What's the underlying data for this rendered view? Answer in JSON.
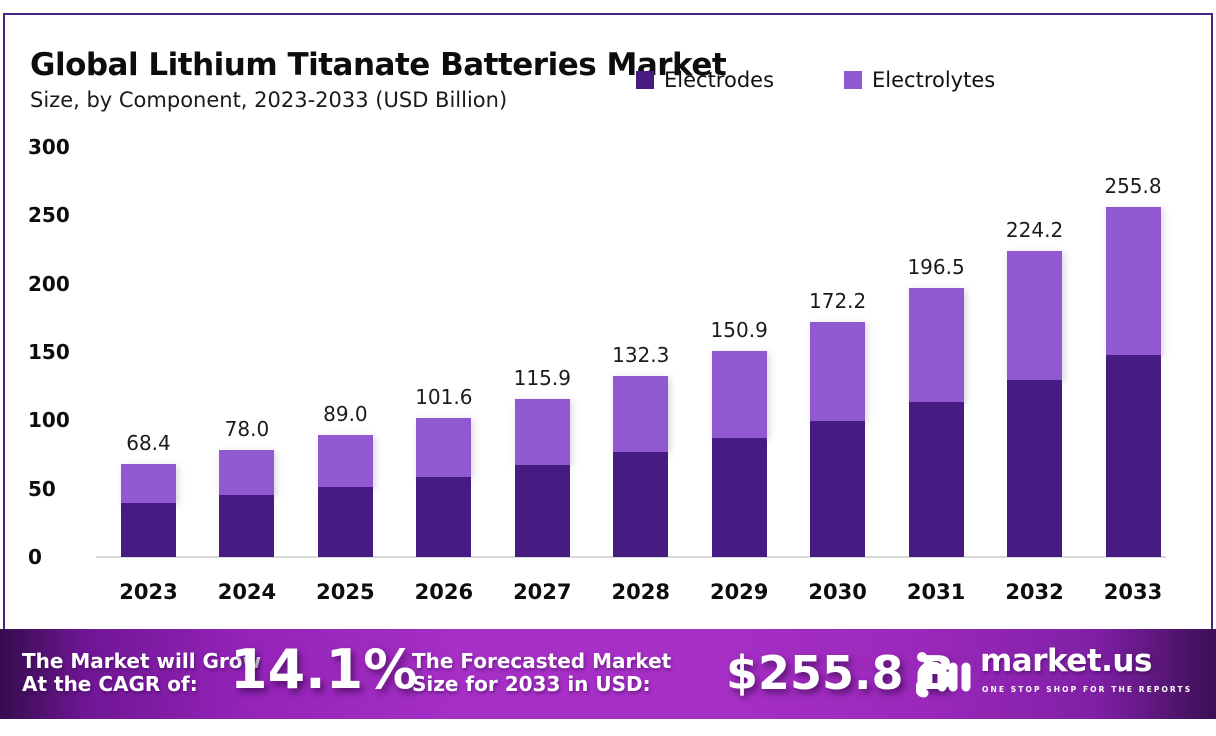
{
  "title": "Global Lithium Titanate Batteries Market",
  "subtitle": "Size, by Component, 2023-2033 (USD Billion)",
  "colors": {
    "electrodes": "#471c82",
    "electrolytes": "#9059d2",
    "frame_border": "#4a2084",
    "banner_center": "#a62fc6",
    "banner_edge": "#350c4d",
    "axis_line": "#d9d9d9",
    "text": "#0d0d0d"
  },
  "legend": {
    "items": [
      {
        "label": "Electrodes",
        "color": "#471c82"
      },
      {
        "label": "Electrolytes",
        "color": "#9059d2"
      }
    ]
  },
  "chart_data": {
    "type": "bar",
    "stacked": true,
    "title": "Global Lithium Titanate Batteries Market Size, by Component, 2023-2033 (USD Billion)",
    "xlabel": "",
    "ylabel": "USD Billion",
    "ylim": [
      0,
      300
    ],
    "yticks": [
      300,
      250,
      200,
      150,
      100,
      50,
      0
    ],
    "grid": false,
    "legend_position": "top",
    "categories": [
      "2023",
      "2024",
      "2025",
      "2026",
      "2027",
      "2028",
      "2029",
      "2030",
      "2031",
      "2032",
      "2033"
    ],
    "series": [
      {
        "name": "Electrodes",
        "color": "#471c82",
        "values": [
          39.5,
          45.1,
          51.4,
          58.7,
          67.0,
          76.5,
          87.2,
          99.5,
          113.6,
          129.6,
          147.9
        ]
      },
      {
        "name": "Electrolytes",
        "color": "#9059d2",
        "values": [
          28.9,
          32.9,
          37.6,
          42.9,
          48.9,
          55.8,
          63.7,
          72.7,
          82.9,
          94.6,
          107.9
        ]
      }
    ],
    "totals": [
      68.4,
      78.0,
      89.0,
      101.6,
      115.9,
      132.3,
      150.9,
      172.2,
      196.5,
      224.2,
      255.8
    ],
    "total_labels": [
      "68.4",
      "78.0",
      "89.0",
      "101.6",
      "115.9",
      "132.3",
      "150.9",
      "172.2",
      "196.5",
      "224.2",
      "255.8"
    ]
  },
  "banner": {
    "cagr_label_line1": "The Market will Grow",
    "cagr_label_line2": "At the CAGR of:",
    "cagr_value": "14.1%",
    "forecast_label_line1": "The Forecasted Market",
    "forecast_label_line2": "Size for 2033 in USD:",
    "forecast_value": "$255.8 B",
    "logo_text": "market.us",
    "logo_tagline": "ONE STOP SHOP FOR THE REPORTS"
  }
}
